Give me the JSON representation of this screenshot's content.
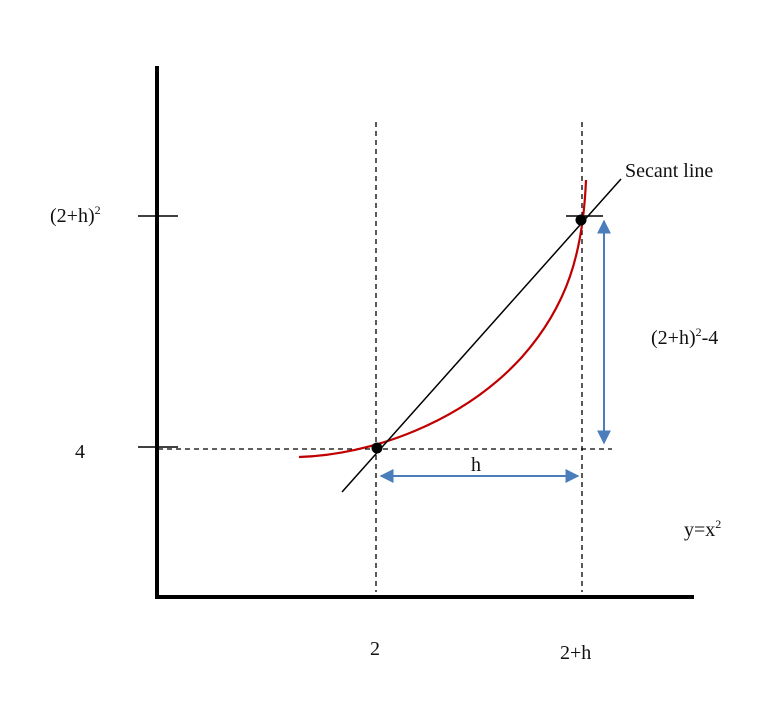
{
  "labels": {
    "secant_line": "Secant line",
    "y_tick_top_base": "(2+h)",
    "y_tick_top_exp": "2",
    "y_tick_bottom": "4",
    "x_tick_left": "2",
    "x_tick_right": "2+h",
    "rise_base": "(2+h)",
    "rise_exp": "2",
    "rise_suffix": "-4",
    "run": "h",
    "curve_base": "y=x",
    "curve_exp": "2"
  },
  "colors": {
    "curve": "#c00000",
    "arrow": "#4a7ebb",
    "axis": "#000000",
    "secant": "#000000",
    "guide": "#000000"
  }
}
